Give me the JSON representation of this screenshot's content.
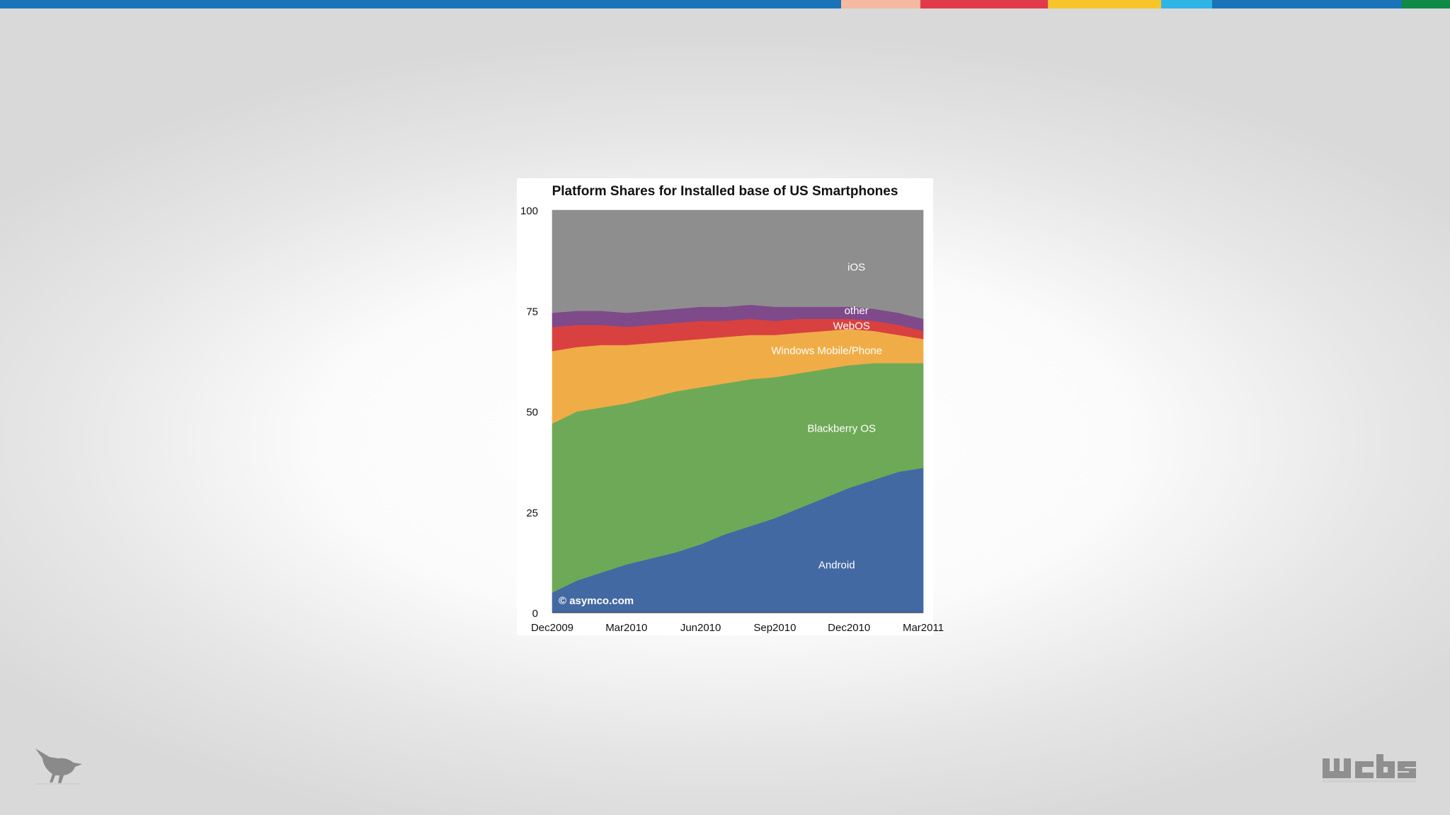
{
  "topbar_colors": [
    "#1a73b8",
    "#f4b9a0",
    "#e03a4c",
    "#f7c52a",
    "#2fb4e6",
    "#1a73b8",
    "#0f8a47"
  ],
  "chart_data": {
    "type": "area",
    "stacked": true,
    "title": "Platform Shares for Installed base of US Smartphones",
    "xlabel": "",
    "ylabel": "",
    "ylim": [
      0,
      100
    ],
    "yticks": [
      0,
      25,
      50,
      75,
      100
    ],
    "x": [
      "Dec2009",
      "Jan2010",
      "Feb2010",
      "Mar2010",
      "Apr2010",
      "May2010",
      "Jun2010",
      "Jul2010",
      "Aug2010",
      "Sep2010",
      "Oct2010",
      "Nov2010",
      "Dec2010",
      "Jan2011",
      "Feb2011",
      "Mar2011"
    ],
    "xtick_labels": [
      "Dec2009",
      "Mar2010",
      "Jun2010",
      "Sep2010",
      "Dec2010",
      "Mar2011"
    ],
    "series": [
      {
        "name": "Android",
        "color": "#4369a3",
        "values": [
          5,
          8,
          10,
          12,
          13.5,
          15,
          17,
          19.5,
          21.5,
          23.5,
          26,
          28.5,
          31,
          33,
          35,
          36
        ]
      },
      {
        "name": "Blackberry OS",
        "color": "#6ea958",
        "values": [
          42,
          42,
          41,
          40,
          40,
          40,
          39,
          37.5,
          36.5,
          35,
          33.5,
          32,
          30.5,
          29,
          27,
          26
        ]
      },
      {
        "name": "Windows Mobile/Phone",
        "color": "#f0ad47",
        "values": [
          18,
          16,
          15.5,
          14.5,
          13.5,
          12.5,
          12,
          11.5,
          11,
          10.5,
          10,
          9.5,
          9,
          8,
          7,
          6
        ]
      },
      {
        "name": "WebOS",
        "color": "#d84140",
        "values": [
          6,
          5.5,
          5,
          4.5,
          4.5,
          4.5,
          4.5,
          4,
          4,
          3.5,
          3.5,
          3,
          2.5,
          2.5,
          2.5,
          2
        ]
      },
      {
        "name": "other",
        "color": "#7e4a8a",
        "values": [
          3.5,
          3.5,
          3.5,
          3.5,
          3.5,
          3.5,
          3.5,
          3.5,
          3.5,
          3.5,
          3,
          3,
          3,
          3,
          3,
          3
        ]
      },
      {
        "name": "iOS",
        "color": "#8e8e8e",
        "values": [
          25.5,
          25,
          25,
          25.5,
          25,
          24.5,
          24,
          24,
          23.5,
          24,
          24,
          24,
          24,
          24.5,
          25.5,
          27
        ]
      }
    ],
    "watermark": "© asymco.com"
  }
}
